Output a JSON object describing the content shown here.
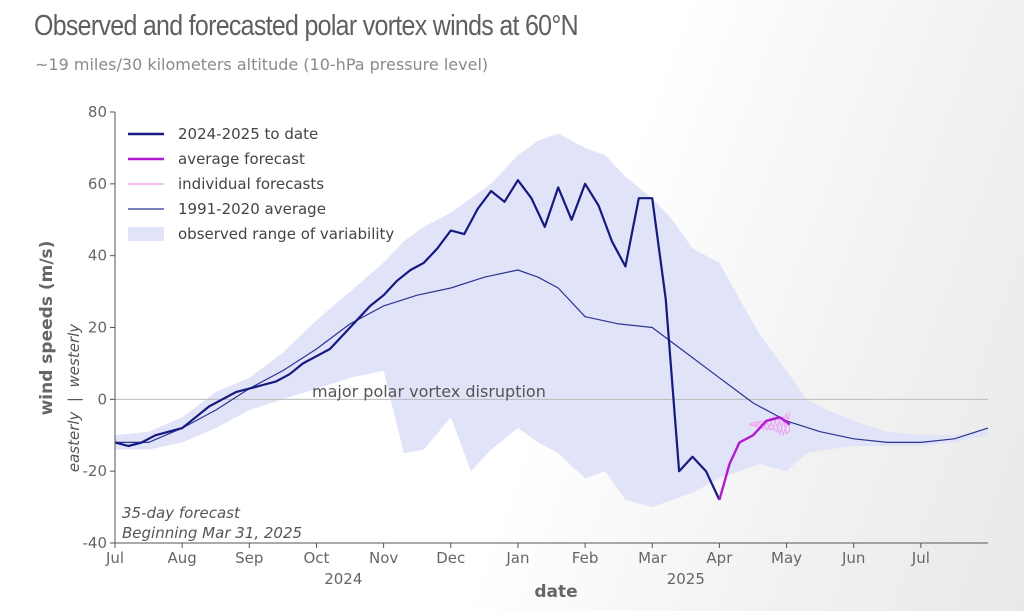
{
  "header": {
    "title": "Observed and forecasted polar vortex winds at 60°N",
    "subtitle": "~19 miles/30 kilometers altitude (10-hPa pressure level)"
  },
  "colors": {
    "observed": "#141a80",
    "average": "#2b3590",
    "forecast_avg": "#b21ad1",
    "forecast_individual": "#f0a7f2",
    "range": "#e1e3f8",
    "zero_line": "#bbbbbb"
  },
  "legend": {
    "observed": "2024-2025 to date",
    "forecast_avg": "average forecast",
    "forecast_individual": "individual forecasts",
    "average": "1991-2020 average",
    "range": "observed range of variability"
  },
  "annotations": {
    "disruption": "major polar vortex disruption",
    "forecast_line1": "35-day forecast",
    "forecast_line2": "Beginning Mar 31, 2025"
  },
  "chart_data": {
    "type": "line",
    "title": "Observed and forecasted polar vortex winds at 60°N",
    "subtitle": "~19 miles/30 kilometers altitude (10-hPa pressure level)",
    "xlabel": "date",
    "ylabel": "wind speeds (m/s)",
    "ylabel_sub": "easterly  |  westerly",
    "ylim": [
      -40,
      80
    ],
    "xlim": [
      0,
      13
    ],
    "yticks": [
      -40,
      -20,
      0,
      20,
      40,
      60,
      80
    ],
    "xticks": [
      {
        "pos": 0,
        "label": "Jul"
      },
      {
        "pos": 1,
        "label": "Aug"
      },
      {
        "pos": 2,
        "label": "Sep"
      },
      {
        "pos": 3,
        "label": "Oct"
      },
      {
        "pos": 4,
        "label": "Nov"
      },
      {
        "pos": 5,
        "label": "Dec"
      },
      {
        "pos": 6,
        "label": "Jan"
      },
      {
        "pos": 7,
        "label": "Feb"
      },
      {
        "pos": 8,
        "label": "Mar"
      },
      {
        "pos": 9,
        "label": "Apr"
      },
      {
        "pos": 10,
        "label": "May"
      },
      {
        "pos": 11,
        "label": "Jun"
      },
      {
        "pos": 12,
        "label": "Jul"
      }
    ],
    "year_labels": [
      {
        "pos": 3.4,
        "label": "2024"
      },
      {
        "pos": 8.5,
        "label": "2025"
      }
    ],
    "grid": false,
    "legend_position": "top-left",
    "series": [
      {
        "name": "observed range of variability",
        "kind": "band",
        "x": [
          0,
          0.5,
          1,
          1.5,
          2,
          2.5,
          3,
          3.5,
          4,
          4.3,
          4.6,
          5,
          5.3,
          5.6,
          6,
          6.3,
          6.6,
          7,
          7.3,
          7.6,
          8,
          8.3,
          8.6,
          9,
          9.3,
          9.6,
          10,
          10.3,
          10.6,
          11,
          11.5,
          12,
          12.5,
          13
        ],
        "lower": [
          -14,
          -14,
          -12,
          -8,
          -3,
          0,
          3,
          6,
          8,
          -15,
          -14,
          -5,
          -20,
          -14,
          -8,
          -12,
          -15,
          -22,
          -20,
          -28,
          -30,
          -28,
          -26,
          -22,
          -20,
          -18,
          -20,
          -15,
          -14,
          -13,
          -13,
          -13,
          -12,
          -10
        ],
        "upper": [
          -10,
          -9,
          -5,
          2,
          6,
          13,
          22,
          30,
          38,
          44,
          48,
          52,
          56,
          60,
          68,
          72,
          74,
          70,
          68,
          62,
          56,
          50,
          42,
          38,
          28,
          18,
          8,
          0,
          -3,
          -6,
          -9,
          -10,
          -10,
          -8
        ]
      },
      {
        "name": "1991-2020 average",
        "kind": "line",
        "x": [
          0,
          0.5,
          1,
          1.5,
          2,
          2.5,
          3,
          3.5,
          4,
          4.5,
          5,
          5.5,
          6,
          6.3,
          6.6,
          7,
          7.5,
          8,
          8.5,
          9,
          9.5,
          10,
          10.5,
          11,
          11.5,
          12,
          12.5,
          13
        ],
        "y": [
          -12,
          -12,
          -8,
          -3,
          3,
          8,
          14,
          21,
          26,
          29,
          31,
          34,
          36,
          34,
          31,
          23,
          21,
          20,
          13,
          6,
          -1,
          -6,
          -9,
          -11,
          -12,
          -12,
          -11,
          -8
        ]
      },
      {
        "name": "2024-2025 to date",
        "kind": "line",
        "x": [
          0,
          0.2,
          0.4,
          0.6,
          0.8,
          1,
          1.2,
          1.4,
          1.6,
          1.8,
          2,
          2.2,
          2.4,
          2.6,
          2.8,
          3,
          3.2,
          3.4,
          3.6,
          3.8,
          4,
          4.2,
          4.4,
          4.6,
          4.8,
          5,
          5.2,
          5.4,
          5.6,
          5.8,
          6,
          6.2,
          6.4,
          6.6,
          6.8,
          7,
          7.2,
          7.4,
          7.6,
          7.8,
          8,
          8.2,
          8.4,
          8.6,
          8.8,
          9
        ],
        "y": [
          -12,
          -13,
          -12,
          -10,
          -9,
          -8,
          -5,
          -2,
          0,
          2,
          3,
          4,
          5,
          7,
          10,
          12,
          14,
          18,
          22,
          26,
          29,
          33,
          36,
          38,
          42,
          47,
          46,
          53,
          58,
          55,
          61,
          56,
          48,
          59,
          50,
          60,
          54,
          44,
          37,
          56,
          56,
          28,
          -20,
          -16,
          -20,
          -28
        ]
      },
      {
        "name": "average forecast",
        "kind": "line",
        "x": [
          9,
          9.15,
          9.3,
          9.5,
          9.7,
          9.9,
          10.05
        ],
        "y": [
          -28,
          -18,
          -12,
          -10,
          -6,
          -5,
          -7
        ]
      }
    ],
    "individual_forecasts_range": {
      "x": [
        9.45,
        10.05
      ],
      "y": [
        -12,
        -2
      ]
    }
  }
}
